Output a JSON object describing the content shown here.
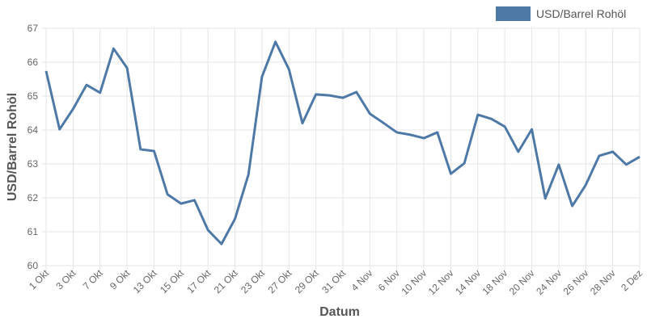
{
  "chart_data": {
    "type": "line",
    "categories": [
      "1 Okt",
      null,
      "3 Okt",
      null,
      "7 Okt",
      null,
      "9 Okt",
      null,
      "13 Okt",
      null,
      "15 Okt",
      null,
      "17 Okt",
      null,
      "21 Okt",
      null,
      "23 Okt",
      null,
      "27 Okt",
      null,
      "29 Okt",
      null,
      "31 Okt",
      null,
      "4 Nov",
      null,
      "6 Nov",
      null,
      "10 Nov",
      null,
      "12 Nov",
      null,
      "14 Nov",
      null,
      "18 Nov",
      null,
      "20 Nov",
      null,
      "24 Nov",
      null,
      "26 Nov",
      null,
      "28 Nov",
      null,
      "2 Dez"
    ],
    "series": [
      {
        "name": "USD/Barrel Rohöl",
        "color": "#4e79a7",
        "values": [
          65.74,
          64.02,
          64.62,
          65.33,
          65.1,
          66.4,
          65.83,
          63.43,
          63.38,
          62.1,
          61.83,
          61.93,
          61.05,
          60.64,
          61.38,
          62.69,
          65.57,
          66.6,
          65.79,
          64.2,
          65.05,
          65.02,
          64.95,
          65.12,
          64.48,
          64.21,
          63.93,
          63.86,
          63.76,
          63.93,
          62.71,
          63.02,
          64.45,
          64.33,
          64.1,
          63.36,
          64.02,
          61.98,
          62.98,
          61.76,
          62.38,
          63.24,
          63.36,
          62.98,
          63.21
        ]
      }
    ],
    "ylim": [
      60,
      67
    ],
    "yticks": [
      60,
      61,
      62,
      63,
      64,
      65,
      66,
      67
    ],
    "xlabel": "Datum",
    "ylabel": "USD/Barrel Rohöl",
    "grid": true,
    "legend": "top-right"
  }
}
